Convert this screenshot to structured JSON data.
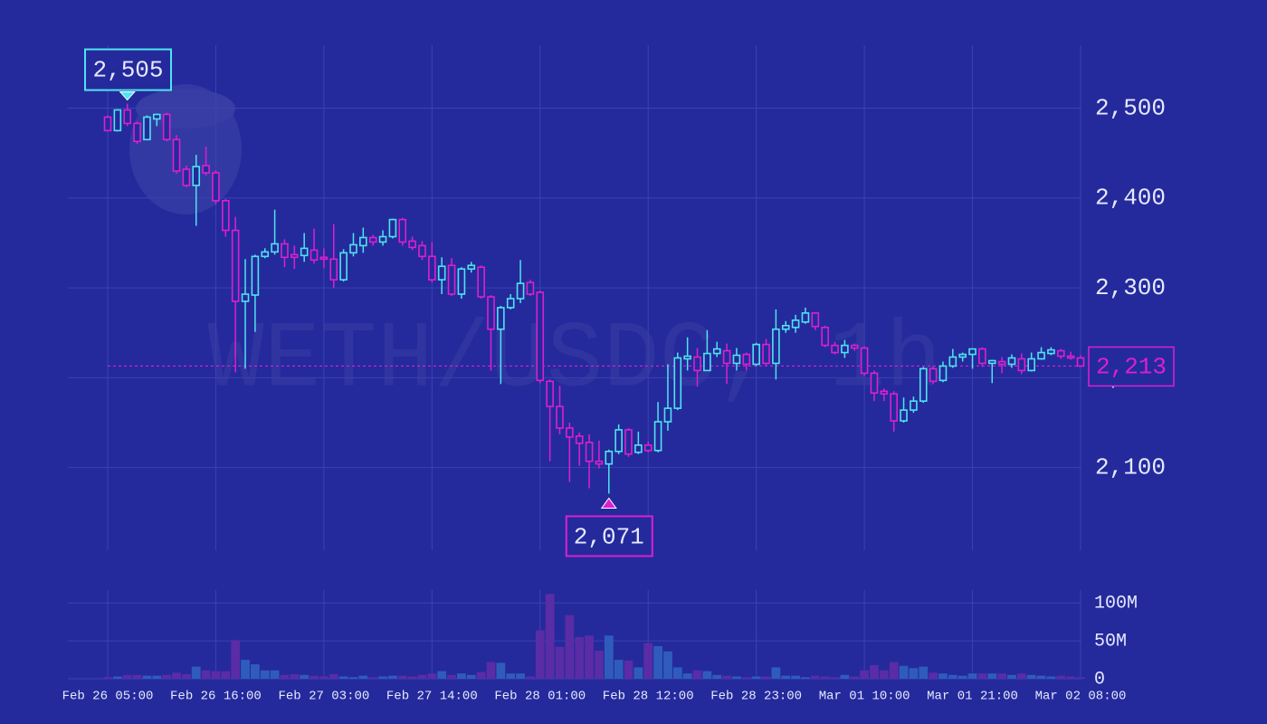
{
  "chart_data": {
    "type": "candlestick",
    "watermark": "WETH/USDC, 1h",
    "up_color": "#4fe3ef",
    "down_color": "#dd1fcf",
    "volume_up_color": "#2f5cbc",
    "volume_down_color": "#5a2ca6",
    "grid": true,
    "xticks": [
      {
        "value": 0,
        "label": "Feb 26 05:00"
      },
      {
        "value": 11,
        "label": "Feb 26 16:00"
      },
      {
        "value": 22,
        "label": "Feb 27 03:00"
      },
      {
        "value": 33,
        "label": "Feb 27 14:00"
      },
      {
        "value": 44,
        "label": "Feb 28 01:00"
      },
      {
        "value": 55,
        "label": "Feb 28 12:00"
      },
      {
        "value": 66,
        "label": "Feb 28 23:00"
      },
      {
        "value": 77,
        "label": "Mar 01 10:00"
      },
      {
        "value": 88,
        "label": "Mar 01 21:00"
      },
      {
        "value": 99,
        "label": "Mar 02 08:00"
      }
    ],
    "ylim": [
      2008,
      2570
    ],
    "yticks": [
      {
        "value": 2100,
        "label": "2,100"
      },
      {
        "value": 2200,
        "label": "2,200"
      },
      {
        "value": 2300,
        "label": "2,300"
      },
      {
        "value": 2400,
        "label": "2,400"
      },
      {
        "value": 2500,
        "label": "2,500"
      }
    ],
    "volume_ylim": [
      0,
      117000000
    ],
    "volume_yticks": [
      0,
      {
        "value": 50000000,
        "label": "50M"
      },
      {
        "value": 100000000,
        "label": "100M"
      }
    ],
    "max_label": {
      "value": 2505,
      "label": "2,505"
    },
    "min_label": {
      "value": 2071,
      "label": "2,071"
    },
    "last_price": {
      "value": 2213,
      "label": "2,213"
    },
    "open": [
      2490,
      2475,
      2498,
      2483,
      2465,
      2488,
      2493,
      2465,
      2432,
      2414,
      2436,
      2428,
      2397,
      2364,
      2285,
      2292,
      2335,
      2340,
      2349,
      2337,
      2336,
      2342,
      2334,
      2332,
      2309,
      2339,
      2347,
      2356,
      2351,
      2357,
      2376,
      2352,
      2347,
      2335,
      2309,
      2325,
      2293,
      2321,
      2323,
      2290,
      2254,
      2278,
      2288,
      2306,
      2295,
      2196,
      2168,
      2144,
      2135,
      2128,
      2107,
      2104,
      2118,
      2142,
      2117,
      2125,
      2119,
      2151,
      2166,
      2221,
      2223,
      2208,
      2227,
      2230,
      2216,
      2226,
      2215,
      2237,
      2216,
      2254,
      2256,
      2262,
      2272,
      2256,
      2236,
      2228,
      2236,
      2233,
      2205,
      2185,
      2182,
      2152,
      2164,
      2174,
      2210,
      2197,
      2213,
      2223,
      2226,
      2232,
      2216,
      2218,
      2215,
      2221,
      2208,
      2221,
      2227,
      2230,
      2224,
      2222
    ],
    "high": [
      2492,
      2499,
      2505,
      2485,
      2492,
      2494,
      2495,
      2470,
      2436,
      2448,
      2457,
      2431,
      2399,
      2379,
      2332,
      2337,
      2344,
      2387,
      2354,
      2347,
      2361,
      2366,
      2344,
      2371,
      2343,
      2361,
      2367,
      2359,
      2364,
      2377,
      2378,
      2357,
      2352,
      2351,
      2334,
      2333,
      2323,
      2329,
      2325,
      2292,
      2280,
      2293,
      2331,
      2309,
      2297,
      2198,
      2191,
      2150,
      2139,
      2137,
      2130,
      2120,
      2148,
      2144,
      2140,
      2129,
      2173,
      2215,
      2228,
      2245,
      2233,
      2253,
      2240,
      2238,
      2233,
      2228,
      2239,
      2243,
      2276,
      2263,
      2270,
      2278,
      2273,
      2258,
      2240,
      2242,
      2238,
      2235,
      2208,
      2188,
      2185,
      2178,
      2179,
      2212,
      2213,
      2218,
      2232,
      2228,
      2232,
      2234,
      2220,
      2223,
      2226,
      2227,
      2228,
      2234,
      2234,
      2232,
      2229,
      2225
    ],
    "low": [
      2474,
      2474,
      2480,
      2460,
      2465,
      2480,
      2463,
      2427,
      2412,
      2369,
      2425,
      2393,
      2357,
      2206,
      2210,
      2251,
      2333,
      2337,
      2323,
      2321,
      2329,
      2327,
      2322,
      2300,
      2307,
      2335,
      2339,
      2347,
      2347,
      2355,
      2347,
      2342,
      2331,
      2306,
      2293,
      2291,
      2288,
      2317,
      2288,
      2208,
      2193,
      2276,
      2283,
      2291,
      2194,
      2107,
      2137,
      2084,
      2102,
      2077,
      2099,
      2071,
      2115,
      2112,
      2115,
      2117,
      2117,
      2141,
      2164,
      2208,
      2190,
      2208,
      2223,
      2193,
      2208,
      2208,
      2213,
      2214,
      2198,
      2250,
      2250,
      2260,
      2253,
      2234,
      2226,
      2222,
      2230,
      2202,
      2174,
      2174,
      2140,
      2150,
      2161,
      2172,
      2193,
      2195,
      2211,
      2218,
      2210,
      2212,
      2194,
      2205,
      2211,
      2204,
      2207,
      2220,
      2225,
      2221,
      2220,
      2212
    ],
    "close": [
      2475,
      2498,
      2483,
      2463,
      2490,
      2493,
      2465,
      2430,
      2414,
      2435,
      2428,
      2397,
      2364,
      2285,
      2293,
      2335,
      2340,
      2349,
      2334,
      2334,
      2344,
      2331,
      2332,
      2309,
      2339,
      2348,
      2356,
      2351,
      2357,
      2376,
      2351,
      2345,
      2335,
      2309,
      2324,
      2293,
      2321,
      2325,
      2290,
      2254,
      2278,
      2288,
      2305,
      2293,
      2197,
      2168,
      2144,
      2134,
      2127,
      2107,
      2104,
      2118,
      2142,
      2115,
      2125,
      2119,
      2151,
      2166,
      2222,
      2224,
      2208,
      2227,
      2232,
      2216,
      2225,
      2215,
      2237,
      2216,
      2254,
      2258,
      2264,
      2272,
      2257,
      2236,
      2228,
      2236,
      2233,
      2205,
      2183,
      2182,
      2152,
      2164,
      2174,
      2210,
      2196,
      2213,
      2223,
      2226,
      2232,
      2216,
      2219,
      2215,
      2222,
      2208,
      2221,
      2228,
      2231,
      2224,
      2222,
      2213
    ],
    "volume": [
      2000000,
      3000000,
      5000000,
      5000000,
      4000000,
      4000000,
      5000000,
      8000000,
      6000000,
      16000000,
      11000000,
      10000000,
      10000000,
      51000000,
      25000000,
      19000000,
      11000000,
      11000000,
      5000000,
      6000000,
      5000000,
      4000000,
      3000000,
      6000000,
      3000000,
      2000000,
      4000000,
      2000000,
      3000000,
      4000000,
      4000000,
      3000000,
      5000000,
      7000000,
      10000000,
      5000000,
      7000000,
      5000000,
      9000000,
      22000000,
      21000000,
      7000000,
      7000000,
      3000000,
      64000000,
      112000000,
      42000000,
      84000000,
      55000000,
      57000000,
      37000000,
      57000000,
      25000000,
      24000000,
      15000000,
      47000000,
      43000000,
      36000000,
      15000000,
      7000000,
      11000000,
      10000000,
      5000000,
      4000000,
      3000000,
      2000000,
      3000000,
      3000000,
      15000000,
      4000000,
      4000000,
      2000000,
      4000000,
      3000000,
      2000000,
      5000000,
      3000000,
      11000000,
      18000000,
      11000000,
      22000000,
      17000000,
      14000000,
      16000000,
      8000000,
      7000000,
      5000000,
      4000000,
      7000000,
      7000000,
      7000000,
      7000000,
      5000000,
      7000000,
      5000000,
      4000000,
      3000000,
      4000000,
      3000000,
      2000000
    ]
  }
}
